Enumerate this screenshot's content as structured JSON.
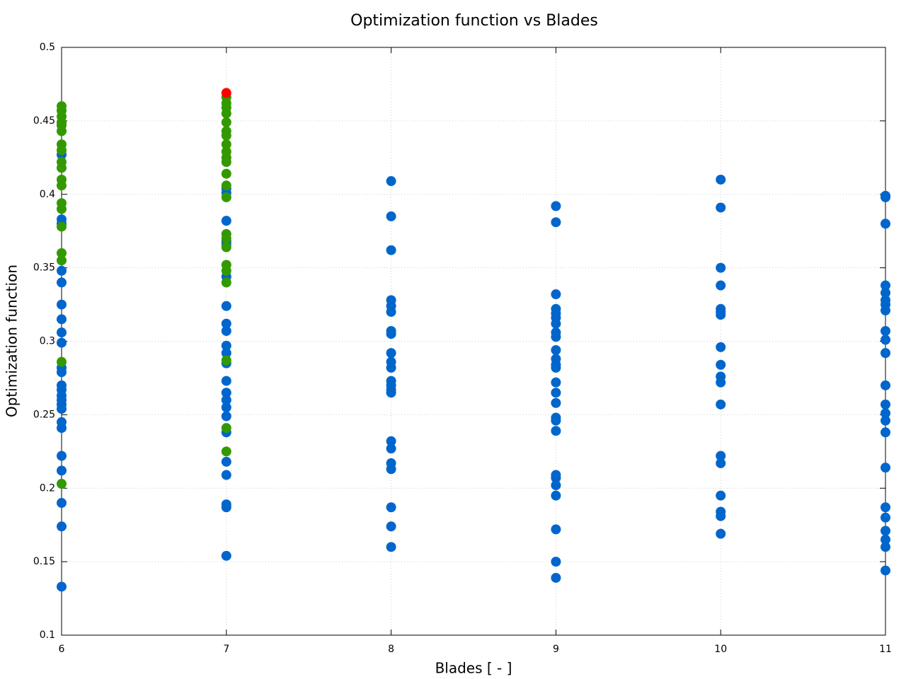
{
  "chart_data": {
    "type": "scatter",
    "title": "Optimization function vs Blades",
    "x_label": "Blades [ - ]",
    "y_label": "Optimization function",
    "xlim": [
      6,
      11
    ],
    "xticks": [
      6,
      7,
      8,
      9,
      10,
      11
    ],
    "ylim": [
      0.1,
      0.5
    ],
    "yticks": [
      0.1,
      0.15,
      0.2,
      0.25,
      0.3,
      0.35,
      0.4,
      0.45,
      0.5
    ],
    "grid": true,
    "series": [
      {
        "color": "#0066cc",
        "x": [
          6,
          6,
          6,
          6,
          6,
          6,
          6,
          6,
          6,
          6,
          6,
          6,
          6,
          6,
          6,
          6,
          6,
          6,
          6,
          6,
          6,
          6,
          6,
          6,
          7,
          7,
          7,
          7,
          7,
          7,
          7,
          7,
          7,
          7,
          7,
          7,
          7,
          7,
          7,
          7,
          7,
          7,
          7,
          7,
          7,
          7,
          7,
          8,
          8,
          8,
          8,
          8,
          8,
          8,
          8,
          8,
          8,
          8,
          8,
          8,
          8,
          8,
          8,
          8,
          8,
          8,
          8,
          8,
          8,
          9,
          9,
          9,
          9,
          9,
          9,
          9,
          9,
          9,
          9,
          9,
          9,
          9,
          9,
          9,
          9,
          9,
          9,
          9,
          9,
          9,
          9,
          9,
          9,
          9,
          9,
          10,
          10,
          10,
          10,
          10,
          10,
          10,
          10,
          10,
          10,
          10,
          10,
          10,
          10,
          10,
          10,
          10,
          10,
          11,
          11,
          11,
          11,
          11,
          11,
          11,
          11,
          11,
          11,
          11,
          11,
          11,
          11,
          11,
          11,
          11,
          11,
          11,
          11,
          11,
          11,
          11
        ],
        "values": [
          0.427,
          0.383,
          0.38,
          0.348,
          0.34,
          0.325,
          0.315,
          0.306,
          0.299,
          0.282,
          0.279,
          0.27,
          0.267,
          0.263,
          0.26,
          0.257,
          0.254,
          0.245,
          0.241,
          0.222,
          0.212,
          0.19,
          0.174,
          0.133,
          0.404,
          0.401,
          0.382,
          0.368,
          0.366,
          0.344,
          0.324,
          0.312,
          0.307,
          0.297,
          0.292,
          0.285,
          0.273,
          0.265,
          0.26,
          0.255,
          0.249,
          0.238,
          0.218,
          0.209,
          0.189,
          0.187,
          0.154,
          0.409,
          0.385,
          0.362,
          0.328,
          0.324,
          0.32,
          0.307,
          0.305,
          0.292,
          0.286,
          0.282,
          0.273,
          0.27,
          0.267,
          0.265,
          0.232,
          0.227,
          0.217,
          0.213,
          0.187,
          0.174,
          0.16,
          0.392,
          0.381,
          0.332,
          0.322,
          0.319,
          0.316,
          0.312,
          0.306,
          0.303,
          0.294,
          0.288,
          0.284,
          0.282,
          0.272,
          0.265,
          0.258,
          0.248,
          0.246,
          0.239,
          0.209,
          0.207,
          0.202,
          0.195,
          0.172,
          0.15,
          0.139,
          0.41,
          0.391,
          0.35,
          0.338,
          0.322,
          0.32,
          0.318,
          0.296,
          0.284,
          0.276,
          0.272,
          0.257,
          0.222,
          0.217,
          0.195,
          0.184,
          0.181,
          0.169,
          0.399,
          0.398,
          0.38,
          0.338,
          0.333,
          0.328,
          0.325,
          0.321,
          0.307,
          0.301,
          0.292,
          0.27,
          0.257,
          0.251,
          0.246,
          0.238,
          0.214,
          0.187,
          0.18,
          0.171,
          0.165,
          0.16,
          0.144
        ]
      },
      {
        "color": "#339900",
        "x": [
          6,
          6,
          6,
          6,
          6,
          6,
          6,
          6,
          6,
          6,
          6,
          6,
          6,
          6,
          6,
          6,
          6,
          6,
          6,
          7,
          7,
          7,
          7,
          7,
          7,
          7,
          7,
          7,
          7,
          7,
          7,
          7,
          7,
          7,
          7,
          7,
          7,
          7,
          7,
          7,
          7,
          7
        ],
        "values": [
          0.46,
          0.457,
          0.453,
          0.449,
          0.447,
          0.443,
          0.434,
          0.43,
          0.422,
          0.418,
          0.41,
          0.406,
          0.394,
          0.39,
          0.378,
          0.36,
          0.355,
          0.286,
          0.203,
          0.466,
          0.462,
          0.459,
          0.455,
          0.449,
          0.443,
          0.44,
          0.434,
          0.429,
          0.425,
          0.422,
          0.414,
          0.406,
          0.398,
          0.373,
          0.37,
          0.364,
          0.352,
          0.348,
          0.34,
          0.287,
          0.241,
          0.225
        ]
      },
      {
        "color": "#ff0000",
        "x": [
          7
        ],
        "values": [
          0.469
        ]
      }
    ]
  }
}
